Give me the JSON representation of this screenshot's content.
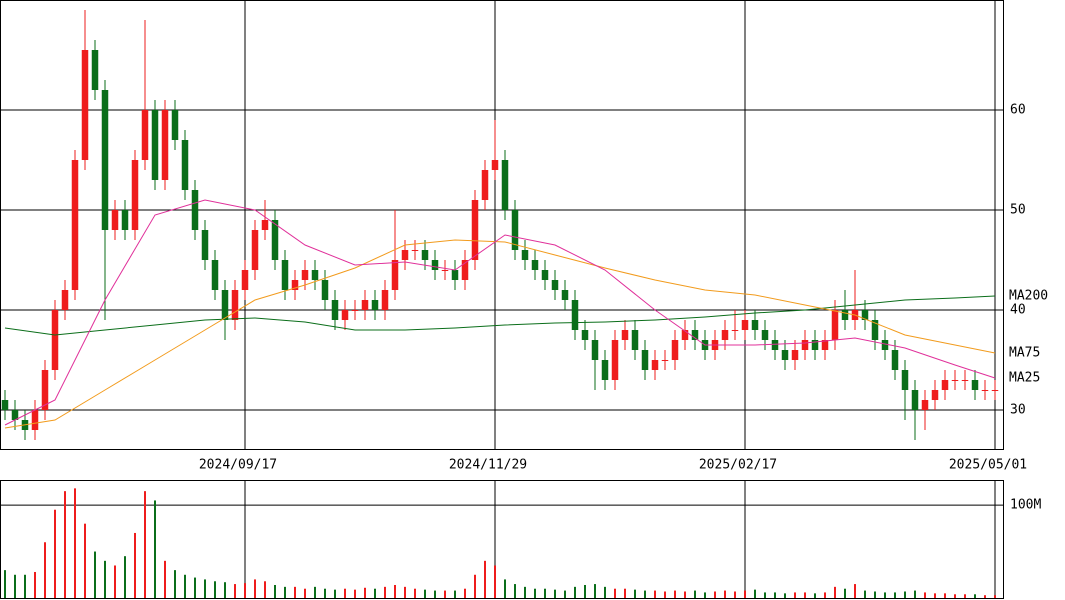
{
  "chart_data": {
    "type": "candlestick",
    "categories": [
      null,
      null,
      null,
      null,
      null,
      null,
      null,
      null,
      null,
      null,
      null,
      null,
      null,
      null,
      null,
      null,
      null,
      null,
      null,
      null,
      null,
      null,
      null,
      null,
      "2024/09/17",
      null,
      null,
      null,
      null,
      null,
      null,
      null,
      null,
      null,
      null,
      null,
      null,
      null,
      null,
      null,
      null,
      null,
      null,
      null,
      null,
      null,
      null,
      null,
      null,
      "2024/11/29",
      null,
      null,
      null,
      null,
      null,
      null,
      null,
      null,
      null,
      null,
      null,
      null,
      null,
      null,
      null,
      null,
      null,
      null,
      null,
      null,
      null,
      null,
      null,
      null,
      "2025/02/17",
      null,
      null,
      null,
      null,
      null,
      null,
      null,
      null,
      null,
      null,
      null,
      null,
      null,
      null,
      null,
      null,
      null,
      null,
      null,
      null,
      null,
      null,
      null,
      null,
      "2025/05/01"
    ],
    "xlim": [
      -0.5,
      99.8
    ],
    "ylim": [
      26,
      71
    ],
    "yticks": [
      30,
      40,
      50,
      60
    ],
    "grid": true,
    "up_color": "#ee1c1c",
    "down_color": "#0b6e1a",
    "open": [
      31,
      30,
      29,
      28,
      30,
      34,
      40,
      42,
      55,
      66,
      62,
      48,
      50,
      48,
      55,
      60,
      53,
      60,
      57,
      52,
      48,
      45,
      42,
      39,
      42,
      44,
      48,
      49,
      45,
      42,
      43,
      44,
      43,
      41,
      39,
      40,
      40,
      41,
      40,
      42,
      45,
      46,
      46,
      45,
      44,
      44,
      43,
      45,
      51,
      54,
      55,
      50,
      46,
      45,
      44,
      43,
      42,
      41,
      38,
      37,
      35,
      33,
      37,
      38,
      36,
      34,
      35,
      35,
      37,
      38,
      37,
      36,
      37,
      38,
      38,
      39,
      38,
      37,
      36,
      35,
      36,
      37,
      36,
      37,
      40,
      39,
      40,
      39,
      37,
      36,
      34,
      32,
      30,
      31,
      32,
      33,
      33,
      33,
      32,
      32
    ],
    "high": [
      32,
      31,
      30,
      31,
      35,
      41,
      43,
      56,
      70,
      67,
      63,
      51,
      51,
      56,
      69,
      61,
      61,
      61,
      58,
      53,
      49,
      46,
      43,
      43,
      45,
      49,
      51,
      50,
      46,
      44,
      45,
      45,
      44,
      42,
      41,
      41,
      42,
      42,
      43,
      50,
      47,
      47,
      47,
      46,
      45,
      45,
      46,
      52,
      55,
      59,
      56,
      51,
      47,
      46,
      45,
      44,
      43,
      42,
      39,
      38,
      36,
      38,
      39,
      39,
      37,
      36,
      36,
      38,
      39,
      39,
      38,
      38,
      39,
      40,
      40,
      40,
      39,
      38,
      37,
      37,
      38,
      38,
      38,
      41,
      42,
      44,
      41,
      40,
      38,
      37,
      35,
      33,
      32,
      33,
      34,
      34,
      34,
      34,
      33,
      33
    ],
    "low": [
      29,
      28,
      27,
      27,
      29,
      33,
      39,
      41,
      54,
      61,
      39,
      47,
      47,
      47,
      54,
      52,
      52,
      56,
      51,
      47,
      44,
      41,
      37,
      38,
      41,
      43,
      47,
      44,
      41,
      41,
      42,
      42,
      40,
      38,
      38,
      39,
      39,
      39,
      39,
      41,
      44,
      45,
      44,
      43,
      43,
      42,
      42,
      44,
      50,
      53,
      49,
      45,
      44,
      43,
      42,
      41,
      40,
      37,
      36,
      32,
      32,
      32,
      36,
      35,
      33,
      33,
      34,
      34,
      36,
      36,
      35,
      35,
      36,
      37,
      37,
      37,
      36,
      35,
      34,
      34,
      35,
      35,
      35,
      36,
      38,
      38,
      38,
      36,
      35,
      33,
      29,
      27,
      28,
      30,
      31,
      32,
      32,
      31,
      31,
      31
    ],
    "close": [
      30,
      29,
      28,
      30,
      34,
      40,
      42,
      55,
      66,
      62,
      48,
      50,
      48,
      55,
      60,
      53,
      60,
      57,
      52,
      48,
      45,
      42,
      39,
      42,
      44,
      48,
      49,
      45,
      42,
      43,
      44,
      43,
      41,
      39,
      40,
      40,
      41,
      40,
      42,
      45,
      46,
      46,
      45,
      44,
      44,
      43,
      45,
      51,
      54,
      55,
      50,
      46,
      45,
      44,
      43,
      42,
      41,
      38,
      37,
      35,
      33,
      37,
      38,
      36,
      34,
      35,
      35,
      37,
      38,
      37,
      36,
      37,
      38,
      38,
      39,
      38,
      37,
      36,
      35,
      36,
      37,
      36,
      37,
      40,
      39,
      40,
      39,
      37,
      36,
      34,
      32,
      30,
      31,
      32,
      33,
      33,
      33,
      32,
      32,
      32
    ],
    "ma": {
      "x": [
        0,
        5,
        10,
        15,
        20,
        25,
        30,
        35,
        40,
        45,
        50,
        55,
        60,
        65,
        70,
        75,
        80,
        85,
        90,
        95,
        99
      ],
      "series": [
        {
          "name": "MA200",
          "color": "#0b6e1a",
          "values": [
            38.2,
            37.5,
            38,
            38.5,
            39,
            39.2,
            38.8,
            38,
            38,
            38.2,
            38.5,
            38.7,
            38.8,
            39,
            39.3,
            39.7,
            40,
            40.5,
            41,
            41.2,
            41.4
          ]
        },
        {
          "name": "MA75",
          "color": "#f29b1d",
          "values": [
            28.2,
            29,
            32,
            35,
            38,
            41,
            42.5,
            44.2,
            46.5,
            47,
            46.8,
            45.5,
            44.2,
            43,
            42,
            41.5,
            40.5,
            39.5,
            37.5,
            36.5,
            35.7
          ]
        },
        {
          "name": "MA25",
          "color": "#e0309a",
          "values": [
            28.5,
            31,
            41,
            49.5,
            51,
            50,
            46.5,
            44.5,
            44.8,
            44,
            47.5,
            46.5,
            44,
            40,
            36.5,
            36.5,
            36.7,
            37.2,
            36.2,
            34.5,
            33.2
          ]
        }
      ]
    },
    "volume": {
      "ylim": [
        0,
        127
      ],
      "yticks": [
        {
          "value": 100,
          "label": "100M"
        }
      ],
      "values": [
        30,
        25,
        25,
        28,
        60,
        95,
        115,
        118,
        80,
        50,
        40,
        35,
        45,
        70,
        115,
        105,
        40,
        30,
        25,
        22,
        20,
        18,
        17,
        15,
        16,
        20,
        18,
        14,
        12,
        12,
        10,
        12,
        10,
        9,
        10,
        9,
        11,
        10,
        12,
        14,
        12,
        10,
        9,
        8,
        8,
        8,
        10,
        25,
        40,
        35,
        20,
        15,
        12,
        10,
        10,
        9,
        8,
        12,
        14,
        15,
        12,
        10,
        10,
        9,
        8,
        8,
        7,
        8,
        7,
        8,
        6,
        7,
        8,
        7,
        8,
        9,
        6,
        6,
        5,
        6,
        6,
        5,
        6,
        12,
        10,
        15,
        8,
        7,
        6,
        6,
        7,
        8,
        6,
        5,
        5,
        4,
        4,
        4,
        3,
        3
      ]
    }
  }
}
